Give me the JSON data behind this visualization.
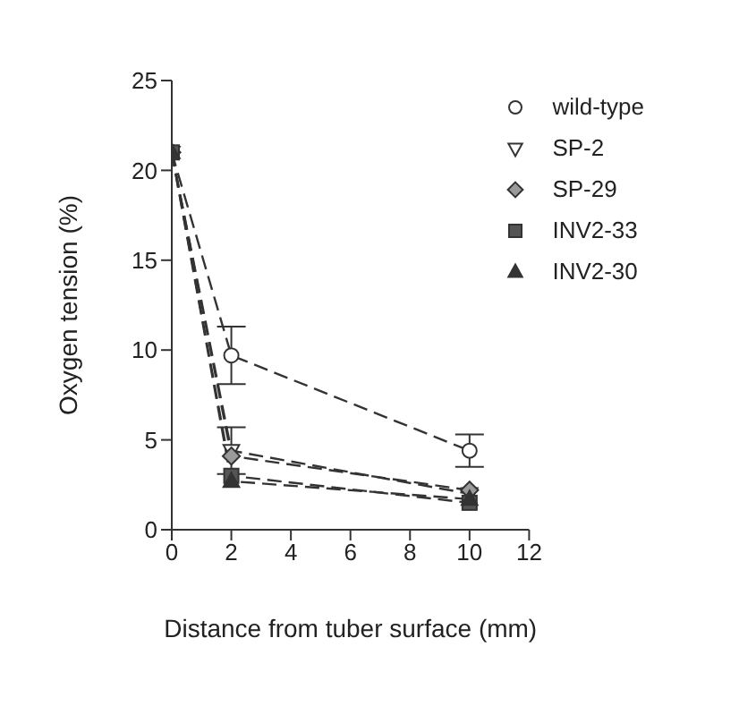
{
  "chart_data": {
    "type": "line",
    "xlabel": "Distance from tuber surface (mm)",
    "ylabel": "Oxygen tension (%)",
    "x": [
      0,
      2,
      10
    ],
    "series": [
      {
        "name": "wild-type",
        "color": "#ffffff",
        "marker": "circle",
        "values": [
          21,
          9.7,
          4.4
        ],
        "errors": [
          null,
          1.6,
          0.9
        ]
      },
      {
        "name": "SP-2",
        "color": "#ffffff",
        "marker": "triangle-down",
        "values": [
          21,
          4.4,
          2.0
        ],
        "errors": [
          null,
          1.3,
          null
        ]
      },
      {
        "name": "SP-29",
        "color": "#9a9a9a",
        "marker": "diamond",
        "values": [
          21,
          4.1,
          2.2
        ]
      },
      {
        "name": "INV2-33",
        "color": "#555555",
        "marker": "square",
        "values": [
          21,
          3.0,
          1.5
        ]
      },
      {
        "name": "INV2-30",
        "color": "#333333",
        "marker": "triangle",
        "values": [
          21,
          2.7,
          1.7
        ]
      }
    ],
    "xlim": [
      0,
      12
    ],
    "xticks": [
      0,
      2,
      4,
      6,
      8,
      10,
      12
    ],
    "ylim": [
      0,
      25
    ],
    "yticks": [
      0,
      5,
      10,
      15,
      20,
      25
    ],
    "grid": false,
    "legend": "top right",
    "line_style": "dashed"
  }
}
